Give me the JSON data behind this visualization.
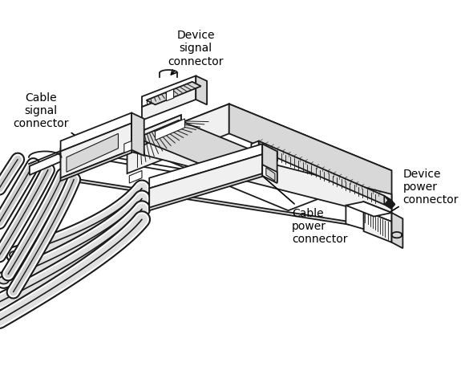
{
  "bg": "#ffffff",
  "lc": "#1a1a1a",
  "lw": 1.3,
  "lw_thin": 0.6,
  "fc_light": "#ffffff",
  "fc_mid": "#f0f0f0",
  "fc_dark": "#d8d8d8",
  "fc_darker": "#c0c0c0",
  "font_size": 10,
  "labels": {
    "device_signal": "Device\nsignal\nconnector",
    "cable_signal": "Cable\nsignal\nconnector",
    "device_power": "Device\npower\nconnector",
    "cable_power": "Cable\npower\nconnector"
  }
}
